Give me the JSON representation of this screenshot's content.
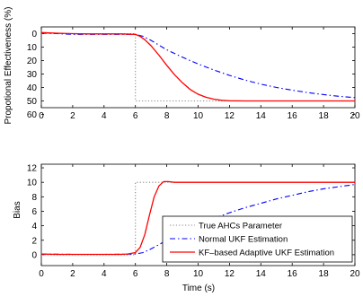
{
  "chart_data": [
    {
      "type": "line",
      "id": "top",
      "ylabel": "Propotional Effectiveness (%)",
      "xlabel": "",
      "xlim": [
        0,
        20
      ],
      "ylim": [
        -5,
        55
      ],
      "y_reversed": true,
      "xticks": [
        "0",
        "2",
        "4",
        "6",
        "8",
        "10",
        "12",
        "14",
        "16",
        "18",
        "20"
      ],
      "yticks": [
        "0",
        "10",
        "20",
        "30",
        "40",
        "50",
        "60"
      ],
      "grid": false,
      "series": [
        {
          "name": "True AHCs Parameter",
          "color": "#888888",
          "style": "dotted",
          "x": [
            0,
            6,
            6,
            20
          ],
          "y": [
            0,
            0,
            50,
            50
          ]
        },
        {
          "name": "Normal UKF Estimation",
          "color": "#0000ff",
          "style": "dashdot",
          "x": [
            0,
            1,
            2,
            4,
            5,
            6,
            6.5,
            7,
            7.5,
            8,
            9,
            10,
            11,
            12,
            13,
            14,
            15,
            16,
            17,
            18,
            19,
            20
          ],
          "y": [
            -0.5,
            0,
            0.5,
            0.5,
            0.5,
            0.5,
            2,
            5,
            8.5,
            12,
            17.5,
            22.5,
            27,
            31,
            34.5,
            37.5,
            40,
            42,
            43.8,
            45.3,
            46.6,
            47.5
          ]
        },
        {
          "name": "KF–based Adaptive UKF Estimation",
          "color": "#ff0000",
          "style": "solid",
          "x": [
            0,
            1,
            2,
            3,
            4,
            5,
            6,
            6.3,
            6.6,
            7,
            7.5,
            8,
            8.5,
            9,
            9.5,
            10,
            10.5,
            11,
            11.5,
            12,
            13,
            14,
            16,
            18,
            20
          ],
          "y": [
            -0.8,
            -0.3,
            0,
            0.2,
            0.2,
            0.2,
            0.5,
            2,
            4.5,
            9,
            16,
            23.5,
            30.5,
            36.5,
            41.5,
            45,
            47.3,
            48.7,
            49.5,
            49.9,
            50,
            50,
            50,
            50,
            50
          ]
        }
      ]
    },
    {
      "type": "line",
      "id": "bottom",
      "ylabel": "Bias",
      "xlabel": "Time (s)",
      "xlim": [
        0,
        20
      ],
      "ylim": [
        -1.5,
        12.5
      ],
      "y_reversed": false,
      "xticks": [
        "0",
        "2",
        "4",
        "6",
        "8",
        "10",
        "12",
        "14",
        "16",
        "18",
        "20"
      ],
      "yticks": [
        "0",
        "2",
        "4",
        "6",
        "8",
        "10",
        "12"
      ],
      "grid": false,
      "legend_position": "bottom-right",
      "series": [
        {
          "name": "True AHCs Parameter",
          "color": "#888888",
          "style": "dotted",
          "x": [
            0,
            6,
            6,
            20
          ],
          "y": [
            0,
            0,
            10,
            10
          ]
        },
        {
          "name": "Normal UKF Estimation",
          "color": "#0000ff",
          "style": "dashdot",
          "x": [
            0,
            2,
            4,
            6,
            6.5,
            7,
            7.5,
            8,
            9,
            10,
            11,
            12,
            13,
            14,
            15,
            16,
            17,
            18,
            19,
            20
          ],
          "y": [
            0.1,
            0.05,
            0.05,
            0.1,
            0.3,
            0.8,
            1.4,
            2.0,
            3.1,
            4.1,
            5.0,
            5.8,
            6.5,
            7.1,
            7.7,
            8.2,
            8.7,
            9.1,
            9.4,
            9.7
          ]
        },
        {
          "name": "KF–based Adaptive UKF Estimation",
          "color": "#ff0000",
          "style": "solid",
          "x": [
            0,
            1,
            2,
            3,
            4,
            5,
            5.5,
            6,
            6.3,
            6.6,
            6.9,
            7.2,
            7.5,
            7.8,
            8.1,
            8.5,
            9,
            10,
            12,
            14,
            16,
            18,
            20
          ],
          "y": [
            0.1,
            0.05,
            0.05,
            0.05,
            0.05,
            0.05,
            0.1,
            0.3,
            1.0,
            2.8,
            5.5,
            8.0,
            9.5,
            10.1,
            10.1,
            10.0,
            10.0,
            10.0,
            10.0,
            10.0,
            10.0,
            10.0,
            10.0
          ]
        }
      ]
    }
  ]
}
